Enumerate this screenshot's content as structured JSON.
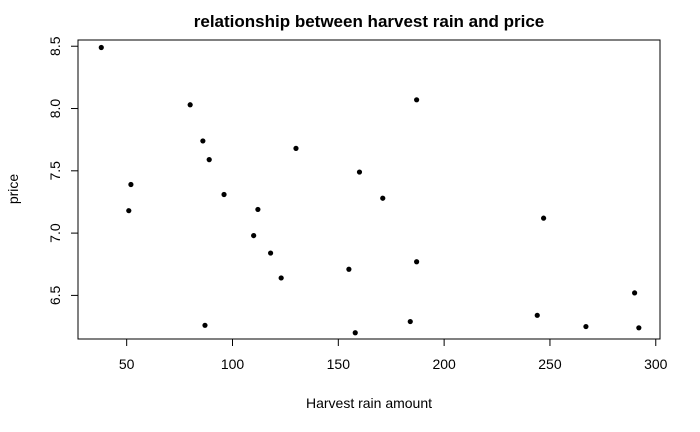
{
  "chart_data": {
    "type": "scatter",
    "title": "relationship between harvest rain and price",
    "xlabel": "Harvest rain amount",
    "ylabel": "price",
    "xlim": [
      27,
      302
    ],
    "ylim": [
      6.15,
      8.55
    ],
    "x_ticks": [
      50,
      100,
      150,
      200,
      250,
      300
    ],
    "y_ticks": [
      6.5,
      7.0,
      7.5,
      8.0,
      8.5
    ],
    "x_tick_labels": [
      "50",
      "100",
      "150",
      "200",
      "250",
      "300"
    ],
    "y_tick_labels": [
      "6.5",
      "7.0",
      "7.5",
      "8.0",
      "8.5"
    ],
    "grid": false,
    "legend": "none",
    "point_color": "#000000",
    "points": [
      {
        "x": 38,
        "y": 8.49
      },
      {
        "x": 52,
        "y": 7.39
      },
      {
        "x": 51,
        "y": 7.18
      },
      {
        "x": 80,
        "y": 8.03
      },
      {
        "x": 86,
        "y": 7.74
      },
      {
        "x": 89,
        "y": 7.59
      },
      {
        "x": 87,
        "y": 6.26
      },
      {
        "x": 96,
        "y": 7.31
      },
      {
        "x": 110,
        "y": 6.98
      },
      {
        "x": 112,
        "y": 7.19
      },
      {
        "x": 118,
        "y": 6.84
      },
      {
        "x": 123,
        "y": 6.64
      },
      {
        "x": 130,
        "y": 7.68
      },
      {
        "x": 155,
        "y": 6.71
      },
      {
        "x": 158,
        "y": 6.2
      },
      {
        "x": 160,
        "y": 7.49
      },
      {
        "x": 171,
        "y": 7.28
      },
      {
        "x": 184,
        "y": 6.29
      },
      {
        "x": 187,
        "y": 8.07
      },
      {
        "x": 187,
        "y": 6.77
      },
      {
        "x": 244,
        "y": 6.34
      },
      {
        "x": 247,
        "y": 7.12
      },
      {
        "x": 267,
        "y": 6.25
      },
      {
        "x": 290,
        "y": 6.52
      },
      {
        "x": 292,
        "y": 6.24
      }
    ]
  }
}
